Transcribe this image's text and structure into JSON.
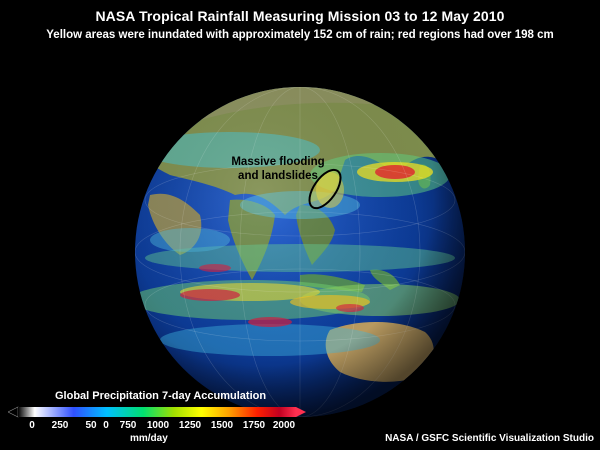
{
  "header": {
    "title": "NASA Tropical Rainfall Measuring Mission  03 to 12 May 2010",
    "subtitle": "Yellow areas were inundated with approximately 152 cm of rain; red regions had over 198 cm"
  },
  "annotation": {
    "line1": "Massive flooding",
    "line2": "and landslides"
  },
  "legend": {
    "title": "Global Precipitation 7-day Accumulation",
    "ticks": [
      "0",
      "250",
      "50",
      "0",
      "750",
      "1000",
      "1250",
      "1500",
      "1750",
      "2000"
    ],
    "unit": "mm/day",
    "colors": [
      "#ffffff",
      "#2050ff",
      "#00c0ff",
      "#00e060",
      "#a0e000",
      "#ffff00",
      "#ffa000",
      "#ff2000",
      "#ff2060"
    ]
  },
  "credit": "NASA / GSFC Scientific Visualization Studio",
  "colors": {
    "ocean": "#0b3a8c",
    "land": "#7a8a4a",
    "heavy_rain": "#e02030",
    "moderate_rain": "#f0e020"
  }
}
